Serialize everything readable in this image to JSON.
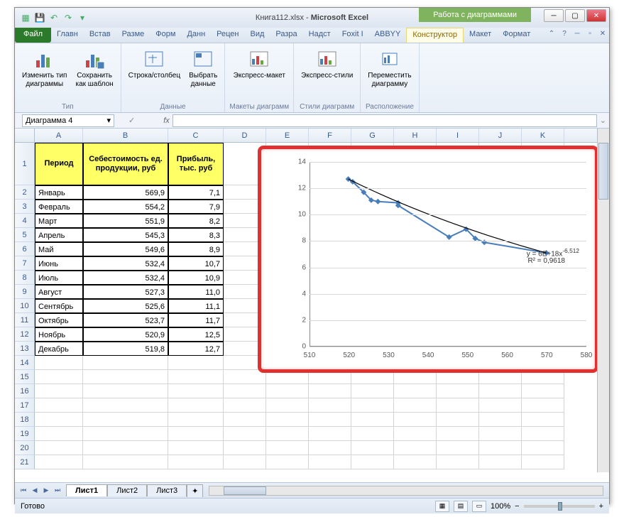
{
  "title": {
    "filename": "Книга112.xlsx",
    "app": "Microsoft Excel",
    "chart_tools": "Работа с диаграммами"
  },
  "tabs": {
    "file": "Файл",
    "list": [
      "Главн",
      "Встав",
      "Разме",
      "Форм",
      "Данн",
      "Рецен",
      "Вид",
      "Разра",
      "Надст",
      "Foxit I",
      "ABBYY"
    ],
    "chart": [
      "Конструктор",
      "Макет",
      "Формат"
    ]
  },
  "ribbon": {
    "type": {
      "label": "Тип",
      "change": "Изменить тип\nдиаграммы",
      "save": "Сохранить\nкак шаблон"
    },
    "data": {
      "label": "Данные",
      "switch": "Строка/столбец",
      "select": "Выбрать\nданные"
    },
    "layouts": {
      "label": "Макеты диаграмм",
      "express": "Экспресс-макет"
    },
    "styles": {
      "label": "Стили диаграмм",
      "express": "Экспресс-стили"
    },
    "location": {
      "label": "Расположение",
      "move": "Переместить\nдиаграмму"
    }
  },
  "namebox": "Диаграмма 4",
  "fx": "fx",
  "columns": {
    "widths": [
      28,
      68,
      120,
      78,
      60,
      60,
      60,
      60,
      60,
      60,
      60,
      60
    ],
    "letters": [
      "A",
      "B",
      "C",
      "D",
      "E",
      "F",
      "G",
      "H",
      "I",
      "J",
      "K"
    ]
  },
  "headers": {
    "A": "Период",
    "B": "Себестоимость ед. продукции, руб",
    "C": "Прибыль, тыс. руб"
  },
  "rows": [
    {
      "n": 2,
      "a": "Январь",
      "b": "569,9",
      "c": "7,1"
    },
    {
      "n": 3,
      "a": "Февраль",
      "b": "554,2",
      "c": "7,9"
    },
    {
      "n": 4,
      "a": "Март",
      "b": "551,9",
      "c": "8,2"
    },
    {
      "n": 5,
      "a": "Апрель",
      "b": "545,3",
      "c": "8,3"
    },
    {
      "n": 6,
      "a": "Май",
      "b": "549,6",
      "c": "8,9"
    },
    {
      "n": 7,
      "a": "Июнь",
      "b": "532,4",
      "c": "10,7"
    },
    {
      "n": 8,
      "a": "Июль",
      "b": "532,4",
      "c": "10,9"
    },
    {
      "n": 9,
      "a": "Август",
      "b": "527,3",
      "c": "11,0"
    },
    {
      "n": 10,
      "a": "Сентябрь",
      "b": "525,6",
      "c": "11,1"
    },
    {
      "n": 11,
      "a": "Октябрь",
      "b": "523,7",
      "c": "11,7"
    },
    {
      "n": 12,
      "a": "Ноябрь",
      "b": "520,9",
      "c": "12,5"
    },
    {
      "n": 13,
      "a": "Декабрь",
      "b": "519,8",
      "c": "12,7"
    }
  ],
  "empty_rows": [
    14,
    15,
    16,
    17,
    18,
    19,
    20,
    21
  ],
  "chart": {
    "type": "scatter",
    "xlim": [
      510,
      580
    ],
    "xtick_step": 10,
    "ylim": [
      0,
      14
    ],
    "ytick_step": 2,
    "series_color": "#4a7ebb",
    "trend_color": "#000000",
    "marker": "diamond",
    "equation": "y = 6E+18x",
    "exponent": "-6,512",
    "r2": "R² = 0,9618",
    "points": [
      {
        "x": 519.8,
        "y": 12.7
      },
      {
        "x": 520.9,
        "y": 12.5
      },
      {
        "x": 523.7,
        "y": 11.7
      },
      {
        "x": 525.6,
        "y": 11.1
      },
      {
        "x": 527.3,
        "y": 11.0
      },
      {
        "x": 532.4,
        "y": 10.9
      },
      {
        "x": 532.4,
        "y": 10.7
      },
      {
        "x": 545.3,
        "y": 8.3
      },
      {
        "x": 549.6,
        "y": 8.9
      },
      {
        "x": 551.9,
        "y": 8.2
      },
      {
        "x": 554.2,
        "y": 7.9
      },
      {
        "x": 569.9,
        "y": 7.1
      }
    ],
    "grid_color": "#d8d8d8",
    "background_color": "#ffffff",
    "highlight_border": "#e03030"
  },
  "sheets": {
    "active": "Лист1",
    "others": [
      "Лист2",
      "Лист3"
    ]
  },
  "status": {
    "ready": "Готово",
    "zoom": "100%"
  }
}
